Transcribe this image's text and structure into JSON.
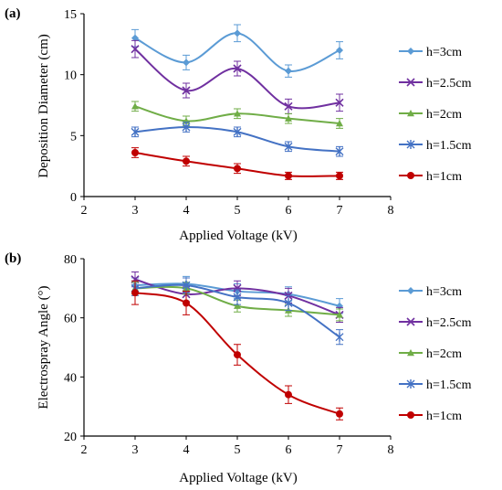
{
  "chart_data": [
    {
      "panel_label": "(a)",
      "type": "line",
      "smooth": true,
      "error_bars": true,
      "xlabel": "Applied Voltage (kV)",
      "ylabel": "Deposition Diameter (cm)",
      "xlim": [
        2,
        8
      ],
      "ylim": [
        0,
        15
      ],
      "x_ticks": [
        2,
        3,
        4,
        5,
        6,
        7,
        8
      ],
      "y_ticks": [
        0,
        5,
        10,
        15
      ],
      "grid": false,
      "legend_position": "right",
      "series": [
        {
          "name": "h=3cm",
          "color": "#5b9bd5",
          "marker": "diamond",
          "x": [
            3,
            4,
            5,
            6,
            7
          ],
          "values": [
            13.0,
            11.0,
            13.4,
            10.3,
            12.0
          ],
          "err": [
            0.7,
            0.6,
            0.7,
            0.5,
            0.7
          ]
        },
        {
          "name": "h=2.5cm",
          "color": "#7030a0",
          "marker": "x",
          "x": [
            3,
            4,
            5,
            6,
            7
          ],
          "values": [
            12.1,
            8.7,
            10.5,
            7.4,
            7.7
          ],
          "err": [
            0.7,
            0.6,
            0.6,
            0.6,
            0.7
          ]
        },
        {
          "name": "h=2cm",
          "color": "#70ad47",
          "marker": "triangle",
          "x": [
            3,
            4,
            5,
            6,
            7
          ],
          "values": [
            7.4,
            6.2,
            6.8,
            6.4,
            6.0
          ],
          "err": [
            0.4,
            0.4,
            0.4,
            0.4,
            0.4
          ]
        },
        {
          "name": "h=1.5cm",
          "color": "#4472c4",
          "marker": "star",
          "x": [
            3,
            4,
            5,
            6,
            7
          ],
          "values": [
            5.3,
            5.7,
            5.3,
            4.1,
            3.7
          ],
          "err": [
            0.4,
            0.4,
            0.4,
            0.4,
            0.4
          ]
        },
        {
          "name": "h=1cm",
          "color": "#c00000",
          "marker": "circle",
          "x": [
            3,
            4,
            5,
            6,
            7
          ],
          "values": [
            3.6,
            2.9,
            2.3,
            1.7,
            1.7
          ],
          "err": [
            0.4,
            0.4,
            0.4,
            0.3,
            0.3
          ]
        }
      ]
    },
    {
      "panel_label": "(b)",
      "type": "line",
      "smooth": true,
      "error_bars": true,
      "xlabel": "Applied Voltage (kV)",
      "ylabel": "Electrospray Angle (°)",
      "xlim": [
        2,
        8
      ],
      "ylim": [
        20,
        80
      ],
      "x_ticks": [
        2,
        3,
        4,
        5,
        6,
        7,
        8
      ],
      "y_ticks": [
        20,
        40,
        60,
        80
      ],
      "grid": false,
      "legend_position": "right",
      "series": [
        {
          "name": "h=3cm",
          "color": "#5b9bd5",
          "marker": "diamond",
          "x": [
            3,
            4,
            5,
            6,
            7
          ],
          "values": [
            71.0,
            71.5,
            69.0,
            68.0,
            64.0
          ],
          "err": [
            2.5,
            2.5,
            2.5,
            2.5,
            2.5
          ]
        },
        {
          "name": "h=2.5cm",
          "color": "#7030a0",
          "marker": "x",
          "x": [
            3,
            4,
            5,
            6,
            7
          ],
          "values": [
            73.0,
            68.0,
            70.0,
            67.5,
            61.0
          ],
          "err": [
            2.5,
            2.5,
            2.5,
            2.5,
            2.5
          ]
        },
        {
          "name": "h=2cm",
          "color": "#70ad47",
          "marker": "triangle",
          "x": [
            3,
            4,
            5,
            6,
            7
          ],
          "values": [
            70.0,
            70.0,
            64.0,
            62.5,
            61.0
          ],
          "err": [
            2.0,
            2.0,
            2.0,
            2.0,
            2.0
          ]
        },
        {
          "name": "h=1.5cm",
          "color": "#4472c4",
          "marker": "star",
          "x": [
            3,
            4,
            5,
            6,
            7
          ],
          "values": [
            70.0,
            71.0,
            67.0,
            65.0,
            53.5
          ],
          "err": [
            2.5,
            2.5,
            2.5,
            2.5,
            2.5
          ]
        },
        {
          "name": "h=1cm",
          "color": "#c00000",
          "marker": "circle",
          "x": [
            3,
            4,
            5,
            6,
            7
          ],
          "values": [
            68.5,
            65.0,
            47.5,
            34.0,
            27.5
          ],
          "err": [
            4.0,
            4.0,
            3.5,
            3.0,
            2.0
          ]
        }
      ]
    }
  ]
}
